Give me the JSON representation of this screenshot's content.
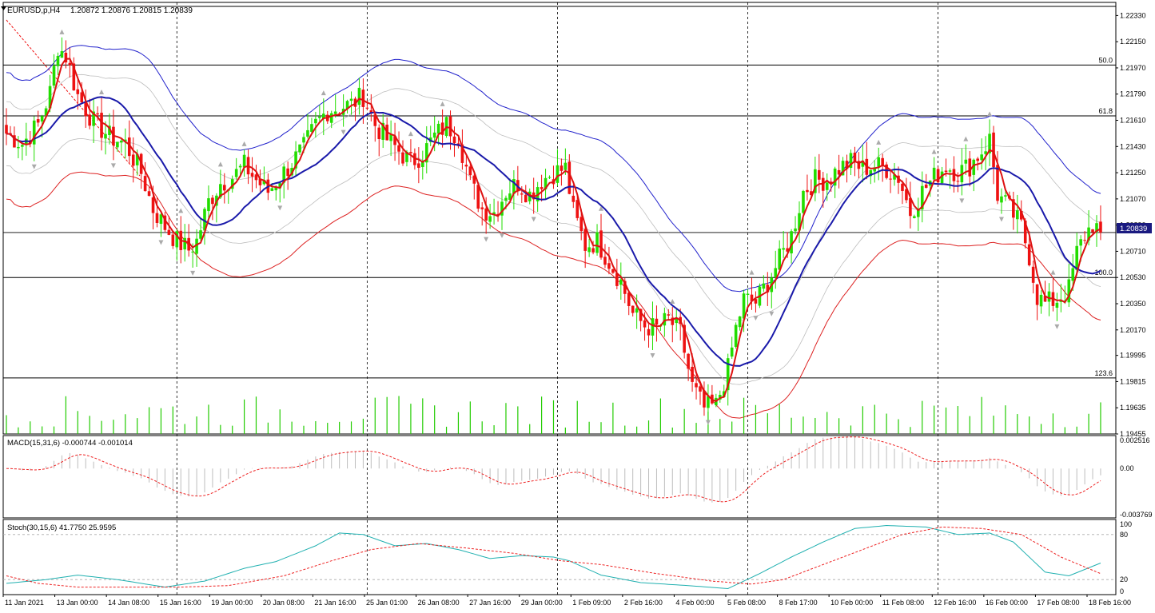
{
  "header": {
    "symbol_label": "EURUSD,p,H4",
    "ohlc_label": "1.20872 1.20876 1.20815 1.20839",
    "current_price_label": "1.20839"
  },
  "macd_header": "MACD(15,31,6) -0.000744 -0.001014",
  "stoch_header": "Stoch(30,15,6) 41.7750 25.9595",
  "colors": {
    "bull": "#22dd00",
    "bear": "#ee1111",
    "ma_fast": "#dd1111",
    "ma_slow": "#1a1aaa",
    "envelope_upper": "#2222cc",
    "envelope_lower": "#dd2222",
    "band": "#bdbdbd",
    "volume": "#22cc00",
    "macd_hist": "#bdbdbd",
    "macd_signal": "#ee2222",
    "stoch_main": "#20b0b0",
    "stoch_signal": "#ee2222",
    "price_tag_bg": "#1a1a80"
  },
  "chart_data": [
    {
      "type": "candlestick",
      "title": "EURUSD,p,H4",
      "y_ticks": [
        "1.22330",
        "1.22150",
        "1.21970",
        "1.21790",
        "1.21610",
        "1.21430",
        "1.21250",
        "1.21070",
        "1.20890",
        "1.20710",
        "1.20530",
        "1.20350",
        "1.20170",
        "1.19995",
        "1.19815",
        "1.19635",
        "1.19455"
      ],
      "ylim": [
        1.19455,
        1.2242
      ],
      "x_tick_labels": [
        "11 Jan 2021",
        "13 Jan 00:00",
        "14 Jan 08:00",
        "15 Jan 16:00",
        "19 Jan 00:00",
        "20 Jan 08:00",
        "21 Jan 16:00",
        "25 Jan 01:00",
        "26 Jan 08:00",
        "27 Jan 16:00",
        "29 Jan 00:00",
        "1 Feb 09:00",
        "2 Feb 16:00",
        "4 Feb 00:00",
        "5 Feb 08:00",
        "8 Feb 17:00",
        "10 Feb 00:00",
        "11 Feb 08:00",
        "12 Feb 16:00",
        "16 Feb 00:00",
        "17 Feb 08:00",
        "18 Feb 16:00"
      ],
      "fib_levels": [
        {
          "label": "50.0",
          "price": 1.2199
        },
        {
          "label": "61.8",
          "price": 1.2164
        },
        {
          "label": "100.0",
          "price": 1.2053
        },
        {
          "label": "123.6",
          "price": 1.1984
        }
      ],
      "close_price": 1.20839,
      "close_anchors": [
        [
          0,
          1.2152
        ],
        [
          4,
          1.2145
        ],
        [
          8,
          1.2158
        ],
        [
          11,
          1.218
        ],
        [
          13,
          1.2212
        ],
        [
          15,
          1.2205
        ],
        [
          18,
          1.2178
        ],
        [
          22,
          1.216
        ],
        [
          26,
          1.215
        ],
        [
          30,
          1.2145
        ],
        [
          34,
          1.2125
        ],
        [
          37,
          1.21
        ],
        [
          40,
          1.2088
        ],
        [
          43,
          1.2078
        ],
        [
          46,
          1.2072
        ],
        [
          48,
          1.2078
        ],
        [
          51,
          1.2105
        ],
        [
          54,
          1.2118
        ],
        [
          57,
          1.2122
        ],
        [
          60,
          1.213
        ],
        [
          63,
          1.212
        ],
        [
          66,
          1.2112
        ],
        [
          69,
          1.2122
        ],
        [
          72,
          1.2132
        ],
        [
          75,
          1.2142
        ],
        [
          78,
          1.2158
        ],
        [
          81,
          1.2168
        ],
        [
          84,
          1.217
        ],
        [
          87,
          1.2172
        ],
        [
          90,
          1.2178
        ],
        [
          93,
          1.2158
        ],
        [
          96,
          1.2148
        ],
        [
          99,
          1.214
        ],
        [
          102,
          1.2132
        ],
        [
          105,
          1.2138
        ],
        [
          108,
          1.215
        ],
        [
          111,
          1.2158
        ],
        [
          114,
          1.215
        ],
        [
          117,
          1.2118
        ],
        [
          120,
          1.21
        ],
        [
          123,
          1.2098
        ],
        [
          126,
          1.2112
        ],
        [
          129,
          1.2118
        ],
        [
          132,
          1.211
        ],
        [
          135,
          1.212
        ],
        [
          138,
          1.2125
        ],
        [
          141,
          1.2128
        ],
        [
          143,
          1.2098
        ],
        [
          146,
          1.2075
        ],
        [
          149,
          1.2078
        ],
        [
          152,
          1.2064
        ],
        [
          155,
          1.205
        ],
        [
          158,
          1.2028
        ],
        [
          161,
          1.202
        ],
        [
          164,
          1.2018
        ],
        [
          167,
          1.2024
        ],
        [
          170,
          1.2015
        ],
        [
          173,
          1.1978
        ],
        [
          176,
          1.1963
        ],
        [
          179,
          1.1965
        ],
        [
          182,
          1.199
        ],
        [
          184,
          1.2018
        ],
        [
          186,
          1.2038
        ],
        [
          189,
          1.2036
        ],
        [
          192,
          1.205
        ],
        [
          195,
          1.2065
        ],
        [
          198,
          1.2082
        ],
        [
          201,
          1.2112
        ],
        [
          204,
          1.212
        ],
        [
          207,
          1.212
        ],
        [
          210,
          1.2128
        ],
        [
          213,
          1.2132
        ],
        [
          216,
          1.2128
        ],
        [
          219,
          1.213
        ],
        [
          222,
          1.2128
        ],
        [
          225,
          1.2122
        ],
        [
          228,
          1.2098
        ],
        [
          231,
          1.2112
        ],
        [
          234,
          1.2122
        ],
        [
          237,
          1.213
        ],
        [
          240,
          1.2125
        ],
        [
          243,
          1.213
        ],
        [
          246,
          1.214
        ],
        [
          248,
          1.2148
        ],
        [
          250,
          1.211
        ],
        [
          253,
          1.21
        ],
        [
          256,
          1.2088
        ],
        [
          258,
          1.2068
        ],
        [
          260,
          1.204
        ],
        [
          262,
          1.2035
        ],
        [
          265,
          1.2038
        ],
        [
          268,
          1.2045
        ],
        [
          270,
          1.207
        ],
        [
          272,
          1.2082
        ],
        [
          274,
          1.209
        ],
        [
          276,
          1.2084
        ]
      ],
      "fast_ma": "red line following price",
      "slow_ma": "blue line following price"
    },
    {
      "type": "bar",
      "title": "Volume",
      "note": "tick volume histogram along bottom of price window"
    },
    {
      "type": "line",
      "title": "MACD(15,31,6)",
      "series": [
        {
          "name": "MACD",
          "last_value": -0.000744
        },
        {
          "name": "Signal",
          "last_value": -0.001014
        }
      ],
      "y_ticks": [
        "0.002516",
        "0.00",
        "-0.003769"
      ],
      "ylim": [
        -0.003769,
        0.002516
      ]
    },
    {
      "type": "line",
      "title": "Stoch(30,15,6)",
      "series": [
        {
          "name": "Main",
          "last_value": 41.775
        },
        {
          "name": "Signal",
          "last_value": 25.9595
        }
      ],
      "y_ticks": [
        "100",
        "80",
        "20",
        "0"
      ],
      "ylim": [
        0,
        100
      ],
      "main_anchors": [
        [
          0,
          15
        ],
        [
          10,
          20
        ],
        [
          18,
          26
        ],
        [
          28,
          20
        ],
        [
          40,
          10
        ],
        [
          50,
          18
        ],
        [
          60,
          35
        ],
        [
          68,
          44
        ],
        [
          78,
          65
        ],
        [
          84,
          82
        ],
        [
          90,
          80
        ],
        [
          98,
          65
        ],
        [
          106,
          68
        ],
        [
          114,
          60
        ],
        [
          122,
          48
        ],
        [
          130,
          52
        ],
        [
          138,
          50
        ],
        [
          142,
          45
        ],
        [
          150,
          26
        ],
        [
          160,
          16
        ],
        [
          172,
          12
        ],
        [
          182,
          8
        ],
        [
          190,
          28
        ],
        [
          198,
          50
        ],
        [
          206,
          70
        ],
        [
          214,
          88
        ],
        [
          222,
          92
        ],
        [
          232,
          90
        ],
        [
          240,
          80
        ],
        [
          248,
          82
        ],
        [
          254,
          70
        ],
        [
          262,
          30
        ],
        [
          268,
          25
        ],
        [
          276,
          42
        ]
      ],
      "signal_anchors": [
        [
          0,
          25
        ],
        [
          8,
          15
        ],
        [
          18,
          10
        ],
        [
          30,
          10
        ],
        [
          44,
          10
        ],
        [
          56,
          12
        ],
        [
          70,
          25
        ],
        [
          82,
          45
        ],
        [
          92,
          60
        ],
        [
          104,
          68
        ],
        [
          116,
          62
        ],
        [
          128,
          55
        ],
        [
          140,
          45
        ],
        [
          150,
          40
        ],
        [
          164,
          28
        ],
        [
          178,
          18
        ],
        [
          188,
          14
        ],
        [
          196,
          20
        ],
        [
          206,
          40
        ],
        [
          216,
          60
        ],
        [
          226,
          80
        ],
        [
          236,
          90
        ],
        [
          246,
          88
        ],
        [
          256,
          80
        ],
        [
          266,
          50
        ],
        [
          276,
          28
        ]
      ]
    }
  ]
}
